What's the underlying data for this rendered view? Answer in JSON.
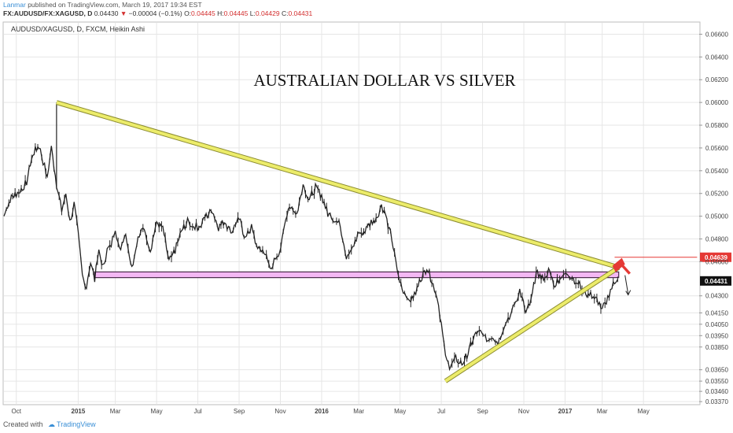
{
  "header": {
    "author": "Lanmar",
    "published": "published on TradingView.com, March 19, 2017 19:34 EST",
    "symbol_line": "FX:AUDUSD/FX:XAGUSD, D",
    "last": "0.04430",
    "change_arrow": "▼",
    "change": "−0.00004 (−0.1%)",
    "o_label": "O:",
    "o": "0.04445",
    "h_label": "H:",
    "h": "0.04445",
    "l_label": "L:",
    "l": "0.04429",
    "c_label": "C:",
    "c": "0.04431"
  },
  "legend": "AUDUSD/XAGUSD, D, FXCM, Heikin Ashi",
  "footer": {
    "created_with": "Created with",
    "brand": "TradingView"
  },
  "colors": {
    "candle": "#222222",
    "trendline_fill": "#ecec6a",
    "trendline_edge": "#8c8c32",
    "zone_fill": "#f4b8f4",
    "zone_edge": "#4a2a4a",
    "red": "#e53935",
    "grid": "#e6e6e6"
  },
  "chart_data": {
    "type": "line",
    "title": "AUSTRALIAN DOLLAR VS SILVER",
    "xlabel": "",
    "ylabel": "",
    "ylim": [
      0.0335,
      0.067
    ],
    "y_ticks": [
      0.066,
      0.064,
      0.062,
      0.06,
      0.058,
      0.056,
      0.054,
      0.052,
      0.05,
      0.048,
      0.046,
      0.043,
      0.0415,
      0.0405,
      0.0395,
      0.0385,
      0.0365,
      0.0355,
      0.0346,
      0.0337
    ],
    "y_tick_labels": [
      "0.06600",
      "0.06400",
      "0.06200",
      "0.06000",
      "0.05800",
      "0.05600",
      "0.05400",
      "0.05200",
      "0.05000",
      "0.04800",
      "0.04600",
      "0.04300",
      "0.04150",
      "0.04050",
      "0.03950",
      "0.03850",
      "0.03650",
      "0.03550",
      "0.03460",
      "0.03370"
    ],
    "x_ticks": [
      {
        "label": "Oct",
        "t": 0.6
      },
      {
        "label": "2015",
        "t": 3.6
      },
      {
        "label": "Mar",
        "t": 5.4
      },
      {
        "label": "May",
        "t": 7.4
      },
      {
        "label": "Jul",
        "t": 9.4
      },
      {
        "label": "Sep",
        "t": 11.4
      },
      {
        "label": "Nov",
        "t": 13.4
      },
      {
        "label": "2016",
        "t": 15.4
      },
      {
        "label": "Mar",
        "t": 17.2
      },
      {
        "label": "May",
        "t": 19.2
      },
      {
        "label": "Jul",
        "t": 21.2
      },
      {
        "label": "Sep",
        "t": 23.2
      },
      {
        "label": "Nov",
        "t": 25.2
      },
      {
        "label": "2017",
        "t": 27.2
      },
      {
        "label": "Mar",
        "t": 29.0
      },
      {
        "label": "May",
        "t": 31.0
      }
    ],
    "x_range": [
      0,
      33.7
    ],
    "series": [
      {
        "points": [
          [
            0,
            0.05
          ],
          [
            0.3,
            0.0515
          ],
          [
            0.6,
            0.052
          ],
          [
            0.9,
            0.0525
          ],
          [
            1.1,
            0.053
          ],
          [
            1.4,
            0.0555
          ],
          [
            1.7,
            0.0562
          ],
          [
            1.9,
            0.0548
          ],
          [
            2.1,
            0.0535
          ],
          [
            2.3,
            0.056
          ],
          [
            2.55,
            0.0528
          ],
          [
            2.8,
            0.0505
          ],
          [
            3.0,
            0.052
          ],
          [
            3.2,
            0.0495
          ],
          [
            3.4,
            0.051
          ],
          [
            3.6,
            0.0485
          ],
          [
            3.8,
            0.045
          ],
          [
            4.0,
            0.0435
          ],
          [
            4.2,
            0.0462
          ],
          [
            4.4,
            0.0445
          ],
          [
            4.6,
            0.047
          ],
          [
            4.8,
            0.0455
          ],
          [
            5.0,
            0.047
          ],
          [
            5.2,
            0.0475
          ],
          [
            5.4,
            0.049
          ],
          [
            5.6,
            0.047
          ],
          [
            5.9,
            0.0485
          ],
          [
            6.2,
            0.0455
          ],
          [
            6.5,
            0.048
          ],
          [
            6.8,
            0.049
          ],
          [
            7.1,
            0.047
          ],
          [
            7.4,
            0.0495
          ],
          [
            7.7,
            0.049
          ],
          [
            8.0,
            0.046
          ],
          [
            8.3,
            0.047
          ],
          [
            8.6,
            0.0487
          ],
          [
            8.9,
            0.0495
          ],
          [
            9.2,
            0.0492
          ],
          [
            9.5,
            0.049
          ],
          [
            9.8,
            0.05
          ],
          [
            10.1,
            0.0505
          ],
          [
            10.4,
            0.049
          ],
          [
            10.7,
            0.0496
          ],
          [
            11.0,
            0.0485
          ],
          [
            11.4,
            0.0498
          ],
          [
            11.7,
            0.048
          ],
          [
            12.0,
            0.049
          ],
          [
            12.3,
            0.047
          ],
          [
            12.6,
            0.047
          ],
          [
            12.9,
            0.0455
          ],
          [
            13.1,
            0.046
          ],
          [
            13.3,
            0.0462
          ],
          [
            13.6,
            0.0495
          ],
          [
            13.9,
            0.051
          ],
          [
            14.2,
            0.0502
          ],
          [
            14.5,
            0.0528
          ],
          [
            14.8,
            0.0515
          ],
          [
            15.1,
            0.0525
          ],
          [
            15.4,
            0.0518
          ],
          [
            15.7,
            0.0502
          ],
          [
            16.0,
            0.0498
          ],
          [
            16.3,
            0.0492
          ],
          [
            16.6,
            0.0465
          ],
          [
            16.9,
            0.0472
          ],
          [
            17.2,
            0.0485
          ],
          [
            17.5,
            0.0487
          ],
          [
            17.8,
            0.0495
          ],
          [
            18.1,
            0.05
          ],
          [
            18.3,
            0.051
          ],
          [
            18.5,
            0.05
          ],
          [
            18.8,
            0.048
          ],
          [
            19.0,
            0.0458
          ],
          [
            19.3,
            0.0435
          ],
          [
            19.6,
            0.0427
          ],
          [
            19.9,
            0.043
          ],
          [
            20.2,
            0.0445
          ],
          [
            20.5,
            0.0455
          ],
          [
            20.8,
            0.044
          ],
          [
            21.0,
            0.043
          ],
          [
            21.2,
            0.0405
          ],
          [
            21.4,
            0.0375
          ],
          [
            21.6,
            0.0368
          ],
          [
            21.9,
            0.0375
          ],
          [
            22.2,
            0.037
          ],
          [
            22.5,
            0.038
          ],
          [
            22.8,
            0.0395
          ],
          [
            23.1,
            0.0398
          ],
          [
            23.4,
            0.039
          ],
          [
            23.7,
            0.0395
          ],
          [
            23.95,
            0.0388
          ],
          [
            24.2,
            0.0402
          ],
          [
            24.5,
            0.041
          ],
          [
            24.8,
            0.0425
          ],
          [
            25.0,
            0.0435
          ],
          [
            25.3,
            0.0415
          ],
          [
            25.55,
            0.0425
          ],
          [
            25.8,
            0.045
          ],
          [
            26.1,
            0.0445
          ],
          [
            26.4,
            0.0452
          ],
          [
            26.7,
            0.044
          ],
          [
            27.0,
            0.0448
          ],
          [
            27.3,
            0.045
          ],
          [
            27.6,
            0.0445
          ],
          [
            27.9,
            0.044
          ],
          [
            28.2,
            0.0432
          ],
          [
            28.5,
            0.043
          ],
          [
            28.8,
            0.0425
          ],
          [
            29.0,
            0.0418
          ],
          [
            29.2,
            0.0425
          ],
          [
            29.4,
            0.0435
          ],
          [
            29.6,
            0.0442
          ],
          [
            29.75,
            0.0447
          ]
        ]
      }
    ],
    "spikes": [
      [
        2.55,
        0.06,
        0.0525
      ]
    ],
    "trendlines": [
      {
        "from": [
          2.55,
          0.06
        ],
        "to": [
          29.8,
          0.0455
        ]
      },
      {
        "from": [
          21.4,
          0.0355
        ],
        "to": [
          29.8,
          0.0455
        ]
      }
    ],
    "zone": {
      "t0": 4.4,
      "t1": 29.8,
      "y_top": 0.0451,
      "y_bot": 0.0446
    },
    "current_price_label": "0.04431",
    "current_price": 0.04431,
    "level_line_label": "0.04639",
    "level_line_price": 0.04639,
    "resistance_segment": {
      "t0": 29.6,
      "t1": 33.6,
      "price": 0.04639
    }
  }
}
